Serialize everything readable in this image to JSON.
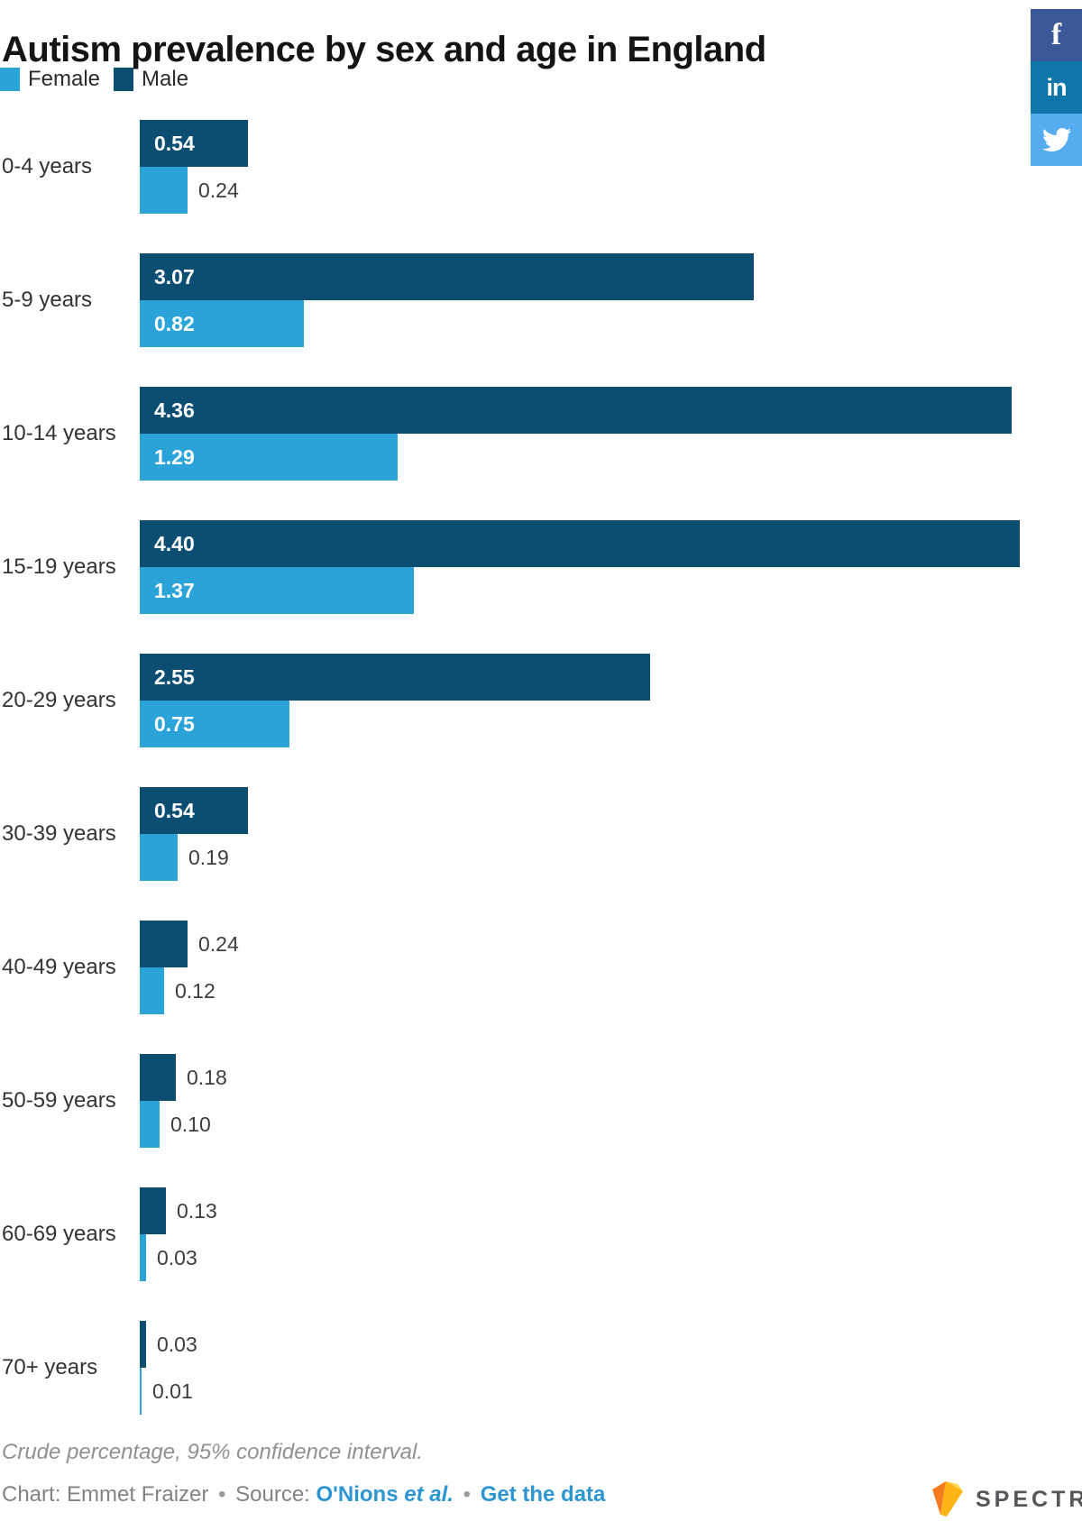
{
  "title": "Autism prevalence by sex and age in England",
  "legend": {
    "items": [
      {
        "label": "Female",
        "color": "#29A3D8"
      },
      {
        "label": "Male",
        "color": "#0C4D72"
      }
    ]
  },
  "chart_data": {
    "type": "bar",
    "orientation": "horizontal",
    "title": "Autism prevalence by sex and age in England",
    "categories": [
      "0-4 years",
      "5-9 years",
      "10-14 years",
      "15-19 years",
      "20-29 years",
      "30-39 years",
      "40-49 years",
      "50-59 years",
      "60-69 years",
      "70+ years"
    ],
    "series": [
      {
        "name": "Male",
        "color": "#0C4D72",
        "values": [
          0.54,
          3.07,
          4.36,
          4.4,
          2.55,
          0.54,
          0.24,
          0.18,
          0.13,
          0.03
        ],
        "labels": [
          "0.54",
          "3.07",
          "4.36",
          "4.40",
          "2.55",
          "0.54",
          "0.24",
          "0.18",
          "0.13",
          "0.03"
        ]
      },
      {
        "name": "Female",
        "color": "#29A3D8",
        "values": [
          0.24,
          0.82,
          1.29,
          1.37,
          0.75,
          0.19,
          0.12,
          0.1,
          0.03,
          0.01
        ],
        "labels": [
          "0.24",
          "0.82",
          "1.29",
          "1.37",
          "0.75",
          "0.19",
          "0.12",
          "0.10",
          "0.03",
          "0.01"
        ]
      }
    ],
    "bar_order": [
      "Male",
      "Female"
    ],
    "xlim": [
      0,
      4.4
    ],
    "grid": false,
    "legend_position": "top-left",
    "note": "Crude percentage, 95% confidence interval."
  },
  "share": {
    "buttons": [
      {
        "name": "facebook",
        "color": "#3B5998",
        "glyph": "f"
      },
      {
        "name": "linkedin",
        "color": "#0E76A8",
        "glyph": "in"
      },
      {
        "name": "twitter",
        "color": "#55ACEE",
        "glyph": ""
      }
    ]
  },
  "footer": {
    "note": "Crude percentage, 95% confidence interval.",
    "credit": {
      "chart_by": "Chart: Emmet Fraizer",
      "separator": "•",
      "source_prefix": "Source:",
      "source_link": "O'Nions",
      "source_link_suffix": "et al.",
      "get_data": "Get the data"
    },
    "logo": {
      "text": "SPECTRUM"
    }
  }
}
